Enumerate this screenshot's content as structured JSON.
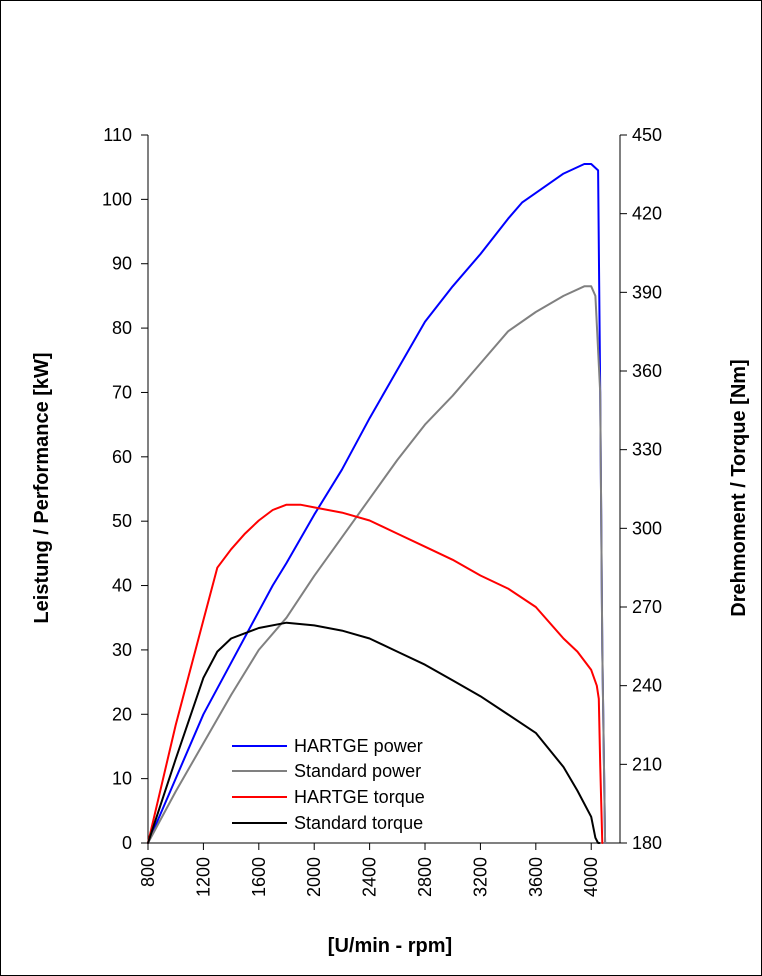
{
  "chart_data": {
    "type": "line",
    "title": "",
    "xlabel": "[U/min - rpm]",
    "ylabel_left": "Leistung / Performance [kW]",
    "ylabel_right": "Drehmoment / Torque [Nm]",
    "xlim": [
      800,
      4150
    ],
    "ylim_left": [
      0,
      110
    ],
    "ylim_right": [
      180,
      450
    ],
    "x_ticks": [
      "800",
      "1200",
      "1600",
      "2000",
      "2400",
      "2800",
      "3200",
      "3600",
      "4000"
    ],
    "y_left_ticks": [
      "0",
      "10",
      "20",
      "30",
      "40",
      "50",
      "60",
      "70",
      "80",
      "90",
      "100",
      "110"
    ],
    "y_right_ticks": [
      "180",
      "210",
      "240",
      "270",
      "300",
      "330",
      "360",
      "390",
      "420",
      "450"
    ],
    "grid": false,
    "legend_position": "bottom-center",
    "series": [
      {
        "name": "HARTGE power",
        "axis": "left",
        "color": "#0000ff",
        "x": [
          800,
          1000,
          1200,
          1400,
          1600,
          1700,
          1800,
          2000,
          2200,
          2400,
          2600,
          2800,
          3000,
          3200,
          3400,
          3500,
          3600,
          3800,
          3950,
          4000,
          4050,
          4065,
          4080,
          4100
        ],
        "y": [
          0,
          10,
          20,
          28,
          36,
          40,
          43.5,
          51,
          58,
          66,
          73.5,
          81,
          86.5,
          91.5,
          97,
          99.5,
          101,
          104,
          105.5,
          105.5,
          104.5,
          70,
          30,
          0
        ]
      },
      {
        "name": "Standard power",
        "axis": "left",
        "color": "#808080",
        "x": [
          800,
          1000,
          1200,
          1400,
          1600,
          1800,
          2000,
          2200,
          2400,
          2600,
          2800,
          3000,
          3200,
          3400,
          3600,
          3800,
          3950,
          4000,
          4030,
          4065,
          4080,
          4100
        ],
        "y": [
          0,
          8,
          15.5,
          23,
          30,
          35,
          41.5,
          47.5,
          53.5,
          59.5,
          65,
          69.5,
          74.5,
          79.5,
          82.5,
          85,
          86.5,
          86.5,
          85,
          70,
          30,
          0
        ]
      },
      {
        "name": "HARTGE torque",
        "axis": "right",
        "color": "#ff0000",
        "x": [
          800,
          1000,
          1200,
          1300,
          1400,
          1500,
          1600,
          1700,
          1800,
          1900,
          2000,
          2200,
          2400,
          2600,
          2800,
          3000,
          3200,
          3400,
          3600,
          3800,
          3900,
          4000,
          4040,
          4055,
          4065,
          4080
        ],
        "y": [
          180,
          225,
          265,
          285,
          292,
          298,
          303,
          307,
          309,
          309,
          308,
          306,
          303,
          298,
          293,
          288,
          282,
          277,
          270,
          258,
          253,
          246,
          240,
          235,
          210,
          180
        ]
      },
      {
        "name": "Standard torque",
        "axis": "right",
        "color": "#000000",
        "x": [
          800,
          1000,
          1200,
          1300,
          1400,
          1600,
          1800,
          2000,
          2200,
          2400,
          2600,
          2800,
          3000,
          3200,
          3400,
          3600,
          3800,
          3900,
          4000,
          4030,
          4050,
          4060
        ],
        "y": [
          180,
          212,
          243,
          253,
          258,
          262,
          264,
          263,
          261,
          258,
          253,
          248,
          242,
          236,
          229,
          222,
          209,
          200,
          190,
          182,
          180,
          180
        ]
      }
    ]
  }
}
